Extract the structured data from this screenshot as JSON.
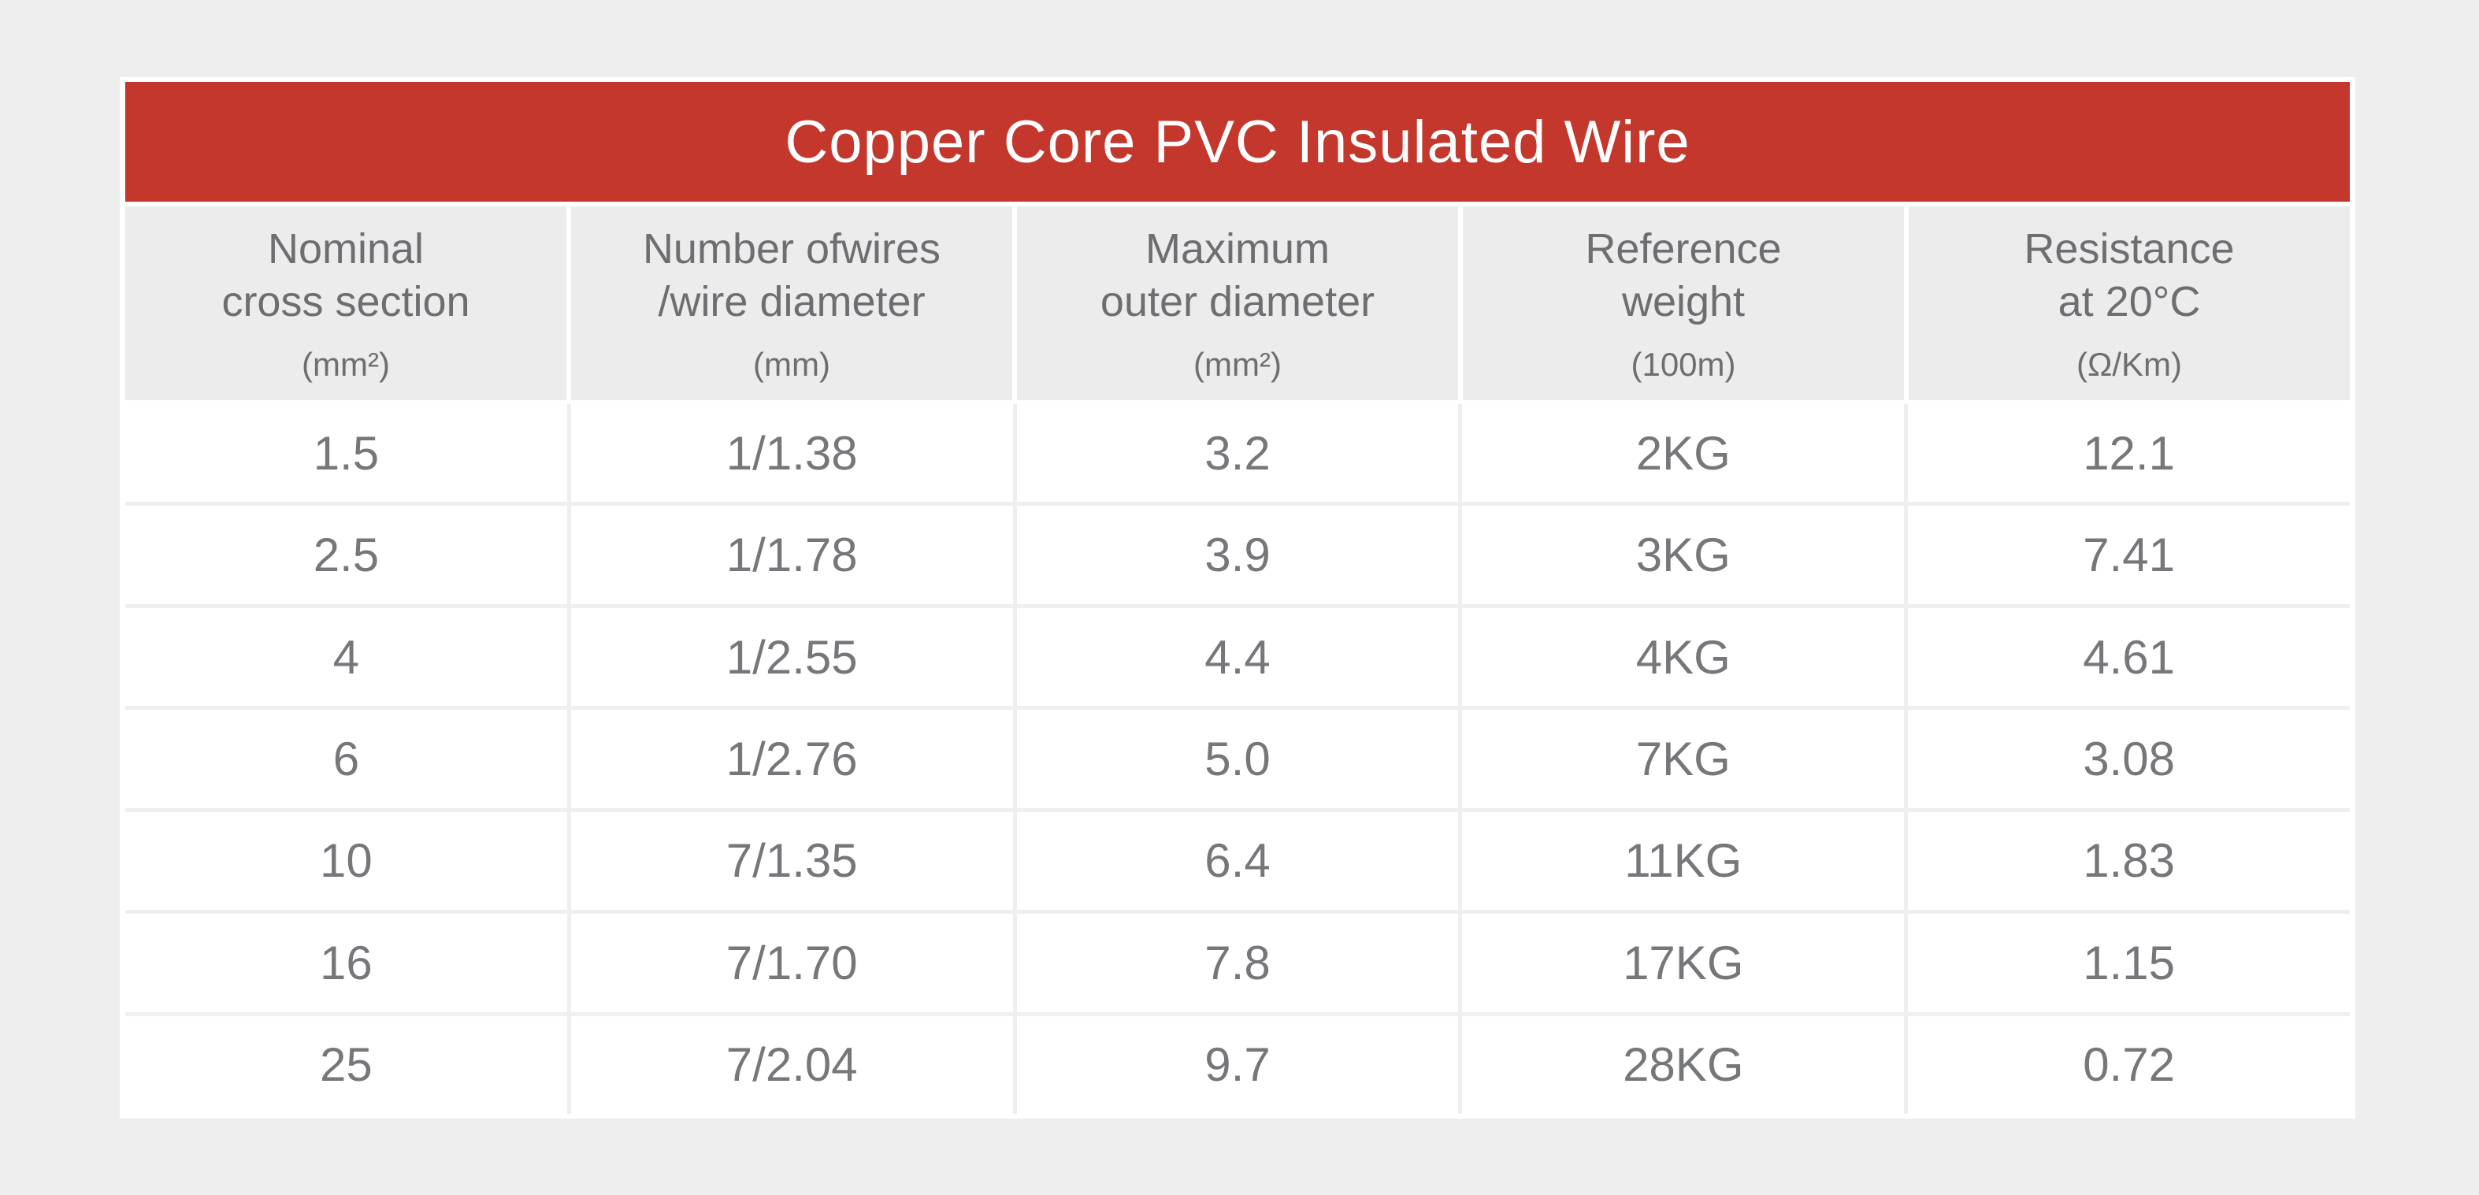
{
  "title": "Copper Core PVC Insulated Wire",
  "colors": {
    "banner_red": "#c4372c",
    "page_background": "#efeeee",
    "header_cell_background": "#ececec",
    "header_text": "#6d6e71",
    "cell_text": "#76777a",
    "title_text": "#ffffff"
  },
  "columns": [
    {
      "line1": "Nominal",
      "line2": "cross section",
      "unit": "(mm²)"
    },
    {
      "line1": "Number ofwires",
      "line2": "/wire diameter",
      "unit": "(mm)"
    },
    {
      "line1": "Maximum",
      "line2": "outer diameter",
      "unit": "(mm²)"
    },
    {
      "line1": "Reference",
      "line2": "weight",
      "unit": "(100m)"
    },
    {
      "line1": "Resistance",
      "line2": "at 20°C",
      "unit": "(Ω/Km)"
    }
  ],
  "chart_data": {
    "type": "table",
    "title": "Copper Core PVC Insulated Wire",
    "column_headers": [
      "Nominal cross section (mm²)",
      "Number ofwires /wire diameter (mm)",
      "Maximum outer diameter (mm²)",
      "Reference weight (100m)",
      "Resistance at 20°C (Ω/Km)"
    ],
    "rows": [
      [
        "1.5",
        "1/1.38",
        "3.2",
        "2KG",
        "12.1"
      ],
      [
        "2.5",
        "1/1.78",
        "3.9",
        "3KG",
        "7.41"
      ],
      [
        "4",
        "1/2.55",
        "4.4",
        "4KG",
        "4.61"
      ],
      [
        "6",
        "1/2.76",
        "5.0",
        "7KG",
        "3.08"
      ],
      [
        "10",
        "7/1.35",
        "6.4",
        "11KG",
        "1.83"
      ],
      [
        "16",
        "7/1.70",
        "7.8",
        "17KG",
        "1.15"
      ],
      [
        "25",
        "7/2.04",
        "9.7",
        "28KG",
        "0.72"
      ]
    ]
  }
}
